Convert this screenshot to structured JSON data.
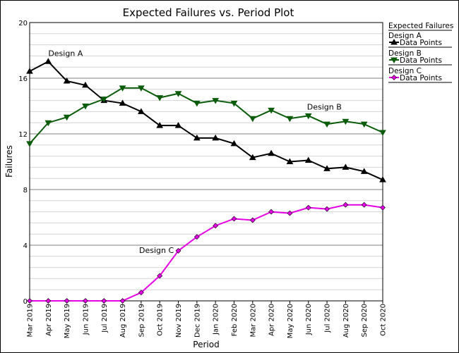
{
  "chart_data": {
    "type": "line",
    "title": "Expected Failures vs. Period Plot",
    "xlabel": "Period",
    "ylabel": "Failures",
    "ylim": [
      0,
      20
    ],
    "yticks": [
      "0",
      "4",
      "8",
      "12",
      "16",
      "20"
    ],
    "grid": true,
    "legend_position": "right",
    "categories": [
      "Mar 2019",
      "Apr 2019",
      "May 2019",
      "Jun 2019",
      "Jul 2019",
      "Aug 2019",
      "Sep 2019",
      "Oct 2019",
      "Nov 2019",
      "Dec 2019",
      "Jan 2020",
      "Feb 2020",
      "Mar 2020",
      "Apr 2020",
      "May 2020",
      "Jun 2020",
      "Jul 2020",
      "Aug 2020",
      "Sep 2020",
      "Oct 2020"
    ],
    "legend": {
      "header": "Expected Failures",
      "groups": [
        {
          "title": "Design A",
          "entry": "Data Points"
        },
        {
          "title": "Design B",
          "entry": "Data Points"
        },
        {
          "title": "Design C",
          "entry": "Data Points"
        }
      ]
    },
    "series": [
      {
        "name": "Design A",
        "color": "#000000",
        "marker": "triangle-up",
        "annotation": "Design A",
        "values": [
          16.5,
          17.2,
          15.8,
          15.5,
          14.4,
          14.2,
          13.6,
          12.6,
          12.6,
          11.7,
          11.7,
          11.3,
          10.3,
          10.6,
          10.0,
          10.1,
          9.5,
          9.6,
          9.3,
          8.7
        ]
      },
      {
        "name": "Design B",
        "color": "#0b5c0b",
        "marker": "triangle-down",
        "annotation": "Design B",
        "values": [
          11.3,
          12.8,
          13.2,
          14.0,
          14.5,
          15.3,
          15.3,
          14.6,
          14.9,
          14.2,
          14.4,
          14.2,
          13.1,
          13.7,
          13.1,
          13.3,
          12.7,
          12.9,
          12.7,
          12.1
        ]
      },
      {
        "name": "Design C",
        "color": "#e600e6",
        "marker": "diamond",
        "annotation": "Design C",
        "values": [
          0,
          0,
          0,
          0,
          0,
          0,
          0.6,
          1.8,
          3.6,
          4.6,
          5.4,
          5.9,
          5.8,
          6.4,
          6.3,
          6.7,
          6.6,
          6.9,
          6.9,
          6.7
        ]
      }
    ]
  }
}
